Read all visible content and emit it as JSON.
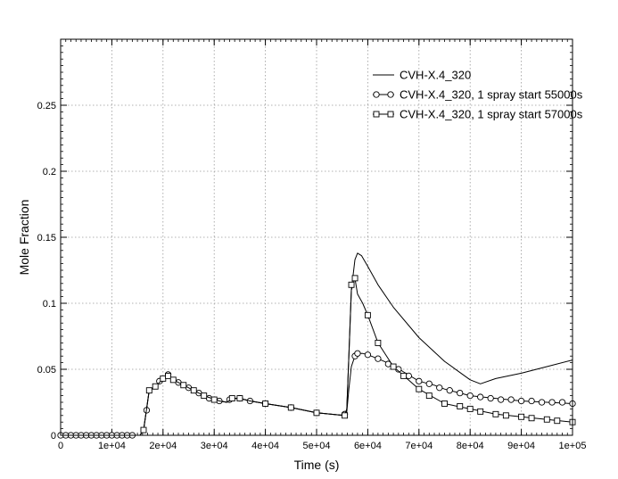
{
  "chart_data": {
    "type": "line",
    "title": "",
    "xlabel": "Time (s)",
    "ylabel": "Mole Fraction",
    "xlim": [
      0,
      100000
    ],
    "ylim": [
      0,
      0.3
    ],
    "grid": true,
    "legend_position": "top-right",
    "x_ticks": [
      {
        "value": 0,
        "label": "0"
      },
      {
        "value": 10000,
        "label": "1e+04"
      },
      {
        "value": 20000,
        "label": "2e+04"
      },
      {
        "value": 30000,
        "label": "3e+04"
      },
      {
        "value": 40000,
        "label": "4e+04"
      },
      {
        "value": 50000,
        "label": "5e+04"
      },
      {
        "value": 60000,
        "label": "6e+04"
      },
      {
        "value": 70000,
        "label": "7e+04"
      },
      {
        "value": 80000,
        "label": "8e+04"
      },
      {
        "value": 90000,
        "label": "9e+04"
      },
      {
        "value": 100000,
        "label": "1e+05"
      }
    ],
    "y_ticks": [
      {
        "value": 0,
        "label": "0"
      },
      {
        "value": 0.05,
        "label": "0.05"
      },
      {
        "value": 0.1,
        "label": "0.1"
      },
      {
        "value": 0.15,
        "label": "0.15"
      },
      {
        "value": 0.2,
        "label": "0.2"
      },
      {
        "value": 0.25,
        "label": "0.25"
      }
    ],
    "series": [
      {
        "name": "CVH-X.4_320",
        "marker": "none",
        "points": [
          [
            0,
            0
          ],
          [
            15500,
            0
          ],
          [
            16200,
            0.004
          ],
          [
            16800,
            0.02
          ],
          [
            17300,
            0.034
          ],
          [
            18500,
            0.037
          ],
          [
            19300,
            0.04
          ],
          [
            20000,
            0.043
          ],
          [
            21000,
            0.046
          ],
          [
            22000,
            0.042
          ],
          [
            24000,
            0.038
          ],
          [
            26000,
            0.034
          ],
          [
            28000,
            0.03
          ],
          [
            31000,
            0.026
          ],
          [
            32500,
            0.025
          ],
          [
            33500,
            0.028
          ],
          [
            35000,
            0.028
          ],
          [
            37000,
            0.026
          ],
          [
            40000,
            0.024
          ],
          [
            45000,
            0.021
          ],
          [
            50000,
            0.017
          ],
          [
            55500,
            0.015
          ],
          [
            55900,
            0.02
          ],
          [
            56300,
            0.06
          ],
          [
            56800,
            0.11
          ],
          [
            57500,
            0.133
          ],
          [
            58000,
            0.138
          ],
          [
            58800,
            0.136
          ],
          [
            60000,
            0.128
          ],
          [
            62000,
            0.114
          ],
          [
            65000,
            0.097
          ],
          [
            70000,
            0.074
          ],
          [
            75000,
            0.056
          ],
          [
            80000,
            0.042
          ],
          [
            82000,
            0.039
          ],
          [
            85000,
            0.043
          ],
          [
            90000,
            0.047
          ],
          [
            95000,
            0.052
          ],
          [
            100000,
            0.057
          ]
        ]
      },
      {
        "name": "CVH-X.4_320, 1 spray start 55000s",
        "marker": "circle",
        "points": [
          [
            0,
            0
          ],
          [
            15500,
            0
          ],
          [
            16200,
            0.004
          ],
          [
            16800,
            0.02
          ],
          [
            17300,
            0.034
          ],
          [
            18500,
            0.037
          ],
          [
            19300,
            0.04
          ],
          [
            20000,
            0.043
          ],
          [
            21000,
            0.046
          ],
          [
            22000,
            0.042
          ],
          [
            24000,
            0.038
          ],
          [
            26000,
            0.034
          ],
          [
            28000,
            0.03
          ],
          [
            31000,
            0.026
          ],
          [
            32500,
            0.025
          ],
          [
            33500,
            0.028
          ],
          [
            35000,
            0.028
          ],
          [
            37000,
            0.026
          ],
          [
            40000,
            0.024
          ],
          [
            45000,
            0.021
          ],
          [
            50000,
            0.017
          ],
          [
            55500,
            0.015
          ],
          [
            55900,
            0.018
          ],
          [
            56300,
            0.035
          ],
          [
            56800,
            0.052
          ],
          [
            57500,
            0.06
          ],
          [
            58000,
            0.062
          ],
          [
            59000,
            0.062
          ],
          [
            60000,
            0.061
          ],
          [
            62000,
            0.058
          ],
          [
            65000,
            0.053
          ],
          [
            67000,
            0.048
          ],
          [
            70000,
            0.041
          ],
          [
            73000,
            0.038
          ],
          [
            75000,
            0.035
          ],
          [
            78000,
            0.032
          ],
          [
            80000,
            0.03
          ],
          [
            85000,
            0.028
          ],
          [
            90000,
            0.026
          ],
          [
            95000,
            0.025
          ],
          [
            100000,
            0.024
          ]
        ],
        "markers": [
          [
            0,
            0
          ],
          [
            1000,
            0
          ],
          [
            2000,
            0
          ],
          [
            3000,
            0
          ],
          [
            4000,
            0
          ],
          [
            5000,
            0
          ],
          [
            6000,
            0
          ],
          [
            7000,
            0
          ],
          [
            8000,
            0
          ],
          [
            9000,
            0
          ],
          [
            10000,
            0
          ],
          [
            11000,
            0
          ],
          [
            12000,
            0
          ],
          [
            13000,
            0
          ],
          [
            14000,
            0
          ],
          [
            16800,
            0.019
          ],
          [
            19300,
            0.041
          ],
          [
            21000,
            0.046
          ],
          [
            23000,
            0.04
          ],
          [
            25000,
            0.036
          ],
          [
            27000,
            0.032
          ],
          [
            29000,
            0.028
          ],
          [
            31000,
            0.026
          ],
          [
            33000,
            0.027
          ],
          [
            35000,
            0.028
          ],
          [
            37000,
            0.026
          ],
          [
            40000,
            0.024
          ],
          [
            45000,
            0.021
          ],
          [
            50000,
            0.017
          ],
          [
            55500,
            0.016
          ],
          [
            57500,
            0.06
          ],
          [
            58000,
            0.062
          ],
          [
            60000,
            0.061
          ],
          [
            62000,
            0.058
          ],
          [
            64000,
            0.054
          ],
          [
            66000,
            0.05
          ],
          [
            68000,
            0.045
          ],
          [
            70000,
            0.041
          ],
          [
            72000,
            0.039
          ],
          [
            74000,
            0.036
          ],
          [
            76000,
            0.034
          ],
          [
            78000,
            0.032
          ],
          [
            80000,
            0.03
          ],
          [
            82000,
            0.029
          ],
          [
            84000,
            0.028
          ],
          [
            86000,
            0.027
          ],
          [
            88000,
            0.027
          ],
          [
            90000,
            0.026
          ],
          [
            92000,
            0.026
          ],
          [
            94000,
            0.025
          ],
          [
            96000,
            0.025
          ],
          [
            98000,
            0.025
          ],
          [
            100000,
            0.024
          ]
        ]
      },
      {
        "name": "CVH-X.4_320, 1 spray start 57000s",
        "marker": "square",
        "points": [
          [
            0,
            0
          ],
          [
            15500,
            0
          ],
          [
            16200,
            0.004
          ],
          [
            16800,
            0.02
          ],
          [
            17300,
            0.034
          ],
          [
            18500,
            0.037
          ],
          [
            19300,
            0.04
          ],
          [
            20000,
            0.043
          ],
          [
            21000,
            0.046
          ],
          [
            22000,
            0.042
          ],
          [
            24000,
            0.038
          ],
          [
            26000,
            0.034
          ],
          [
            28000,
            0.03
          ],
          [
            31000,
            0.026
          ],
          [
            32500,
            0.025
          ],
          [
            33500,
            0.028
          ],
          [
            35000,
            0.028
          ],
          [
            37000,
            0.026
          ],
          [
            40000,
            0.024
          ],
          [
            45000,
            0.021
          ],
          [
            50000,
            0.017
          ],
          [
            55500,
            0.015
          ],
          [
            55900,
            0.02
          ],
          [
            56300,
            0.06
          ],
          [
            56800,
            0.11
          ],
          [
            57500,
            0.119
          ],
          [
            58000,
            0.107
          ],
          [
            59000,
            0.1
          ],
          [
            60000,
            0.091
          ],
          [
            62000,
            0.07
          ],
          [
            65000,
            0.052
          ],
          [
            70000,
            0.035
          ],
          [
            75000,
            0.024
          ],
          [
            80000,
            0.02
          ],
          [
            85000,
            0.016
          ],
          [
            90000,
            0.014
          ],
          [
            95000,
            0.012
          ],
          [
            100000,
            0.01
          ]
        ],
        "markers": [
          [
            16200,
            0.004
          ],
          [
            17300,
            0.034
          ],
          [
            18500,
            0.037
          ],
          [
            20000,
            0.043
          ],
          [
            21000,
            0.045
          ],
          [
            22000,
            0.042
          ],
          [
            24000,
            0.038
          ],
          [
            26000,
            0.034
          ],
          [
            28000,
            0.03
          ],
          [
            30000,
            0.027
          ],
          [
            33500,
            0.028
          ],
          [
            35000,
            0.028
          ],
          [
            40000,
            0.024
          ],
          [
            45000,
            0.021
          ],
          [
            50000,
            0.017
          ],
          [
            55500,
            0.015
          ],
          [
            56800,
            0.114
          ],
          [
            57500,
            0.119
          ],
          [
            60000,
            0.091
          ],
          [
            62000,
            0.07
          ],
          [
            65000,
            0.052
          ],
          [
            67000,
            0.045
          ],
          [
            70000,
            0.035
          ],
          [
            72000,
            0.03
          ],
          [
            75000,
            0.024
          ],
          [
            78000,
            0.022
          ],
          [
            80000,
            0.02
          ],
          [
            82000,
            0.018
          ],
          [
            85000,
            0.016
          ],
          [
            87000,
            0.015
          ],
          [
            90000,
            0.014
          ],
          [
            92000,
            0.013
          ],
          [
            95000,
            0.012
          ],
          [
            97000,
            0.011
          ],
          [
            100000,
            0.01
          ]
        ]
      }
    ]
  }
}
